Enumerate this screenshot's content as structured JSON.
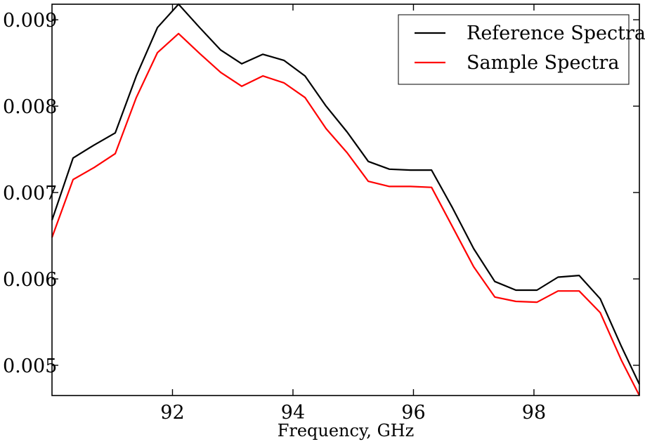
{
  "chart_data": {
    "type": "line",
    "title": "",
    "xlabel": "Frequency, GHz",
    "ylabel": "",
    "xlim": [
      90.0,
      99.75
    ],
    "ylim": [
      0.00465,
      0.00918
    ],
    "xticks": [
      92,
      94,
      96,
      98
    ],
    "xtick_labels": [
      "92",
      "94",
      "96",
      "98"
    ],
    "yticks": [
      0.005,
      0.006,
      0.007,
      0.008,
      0.009
    ],
    "ytick_labels": [
      "0.005",
      "0.006",
      "0.007",
      "0.008",
      "0.009"
    ],
    "grid": false,
    "legend_position": "top-right",
    "x": [
      90.0,
      90.35,
      90.7,
      91.05,
      91.4,
      91.75,
      92.1,
      92.45,
      92.8,
      93.15,
      93.5,
      93.85,
      94.2,
      94.55,
      94.9,
      95.25,
      95.6,
      95.95,
      96.3,
      96.65,
      97.0,
      97.35,
      97.7,
      98.05,
      98.4,
      98.75,
      99.1,
      99.45,
      99.75
    ],
    "series": [
      {
        "name": "Reference Spectra",
        "color": "#000000",
        "values": [
          0.00668,
          0.0074,
          0.00755,
          0.00769,
          0.00835,
          0.00891,
          0.00918,
          0.00891,
          0.00865,
          0.00849,
          0.0086,
          0.00853,
          0.00835,
          0.008,
          0.0077,
          0.00736,
          0.00727,
          0.00726,
          0.00726,
          0.00682,
          0.00635,
          0.00597,
          0.00587,
          0.00587,
          0.00602,
          0.00604,
          0.00577,
          0.00522,
          0.00478
        ]
      },
      {
        "name": "Sample Spectra",
        "color": "#ff0000",
        "values": [
          0.00648,
          0.00715,
          0.00729,
          0.00745,
          0.0081,
          0.00862,
          0.00884,
          0.00861,
          0.00839,
          0.00823,
          0.00835,
          0.00827,
          0.0081,
          0.00774,
          0.00746,
          0.00713,
          0.00707,
          0.00707,
          0.00706,
          0.0066,
          0.00614,
          0.00579,
          0.00574,
          0.00573,
          0.00586,
          0.00586,
          0.00561,
          0.00506,
          0.00465
        ]
      }
    ]
  }
}
